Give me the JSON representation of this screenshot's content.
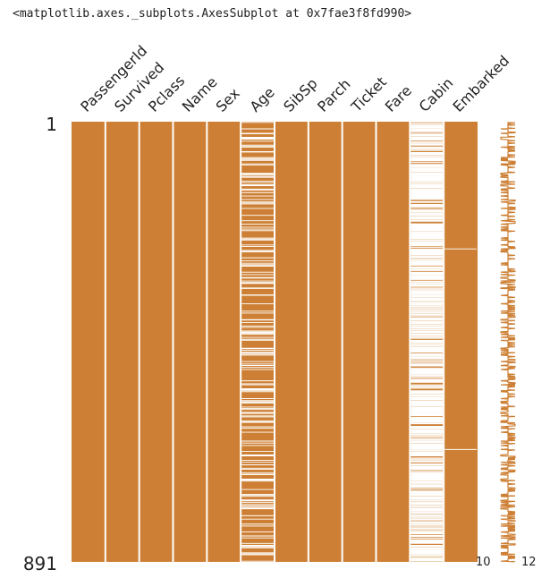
{
  "output_text": "<matplotlib.axes._subplots.AxesSubplot at 0x7fae3f8fd990>",
  "colors": {
    "bar": "#cd8035",
    "gap": "#ffffff",
    "text": "#222222"
  },
  "chart_data": {
    "type": "missingno_matrix",
    "title": "",
    "columns": [
      "PassengerId",
      "Survived",
      "Pclass",
      "Name",
      "Sex",
      "Age",
      "SibSp",
      "Parch",
      "Ticket",
      "Fare",
      "Cabin",
      "Embarked"
    ],
    "row_count": 891,
    "row_label_top": "1",
    "row_label_bottom": "891",
    "non_null_counts": [
      891,
      891,
      891,
      891,
      891,
      714,
      891,
      891,
      891,
      891,
      204,
      889
    ],
    "sparkline": {
      "min_label": "10",
      "max_label": "12",
      "range": [
        10,
        12
      ]
    }
  }
}
